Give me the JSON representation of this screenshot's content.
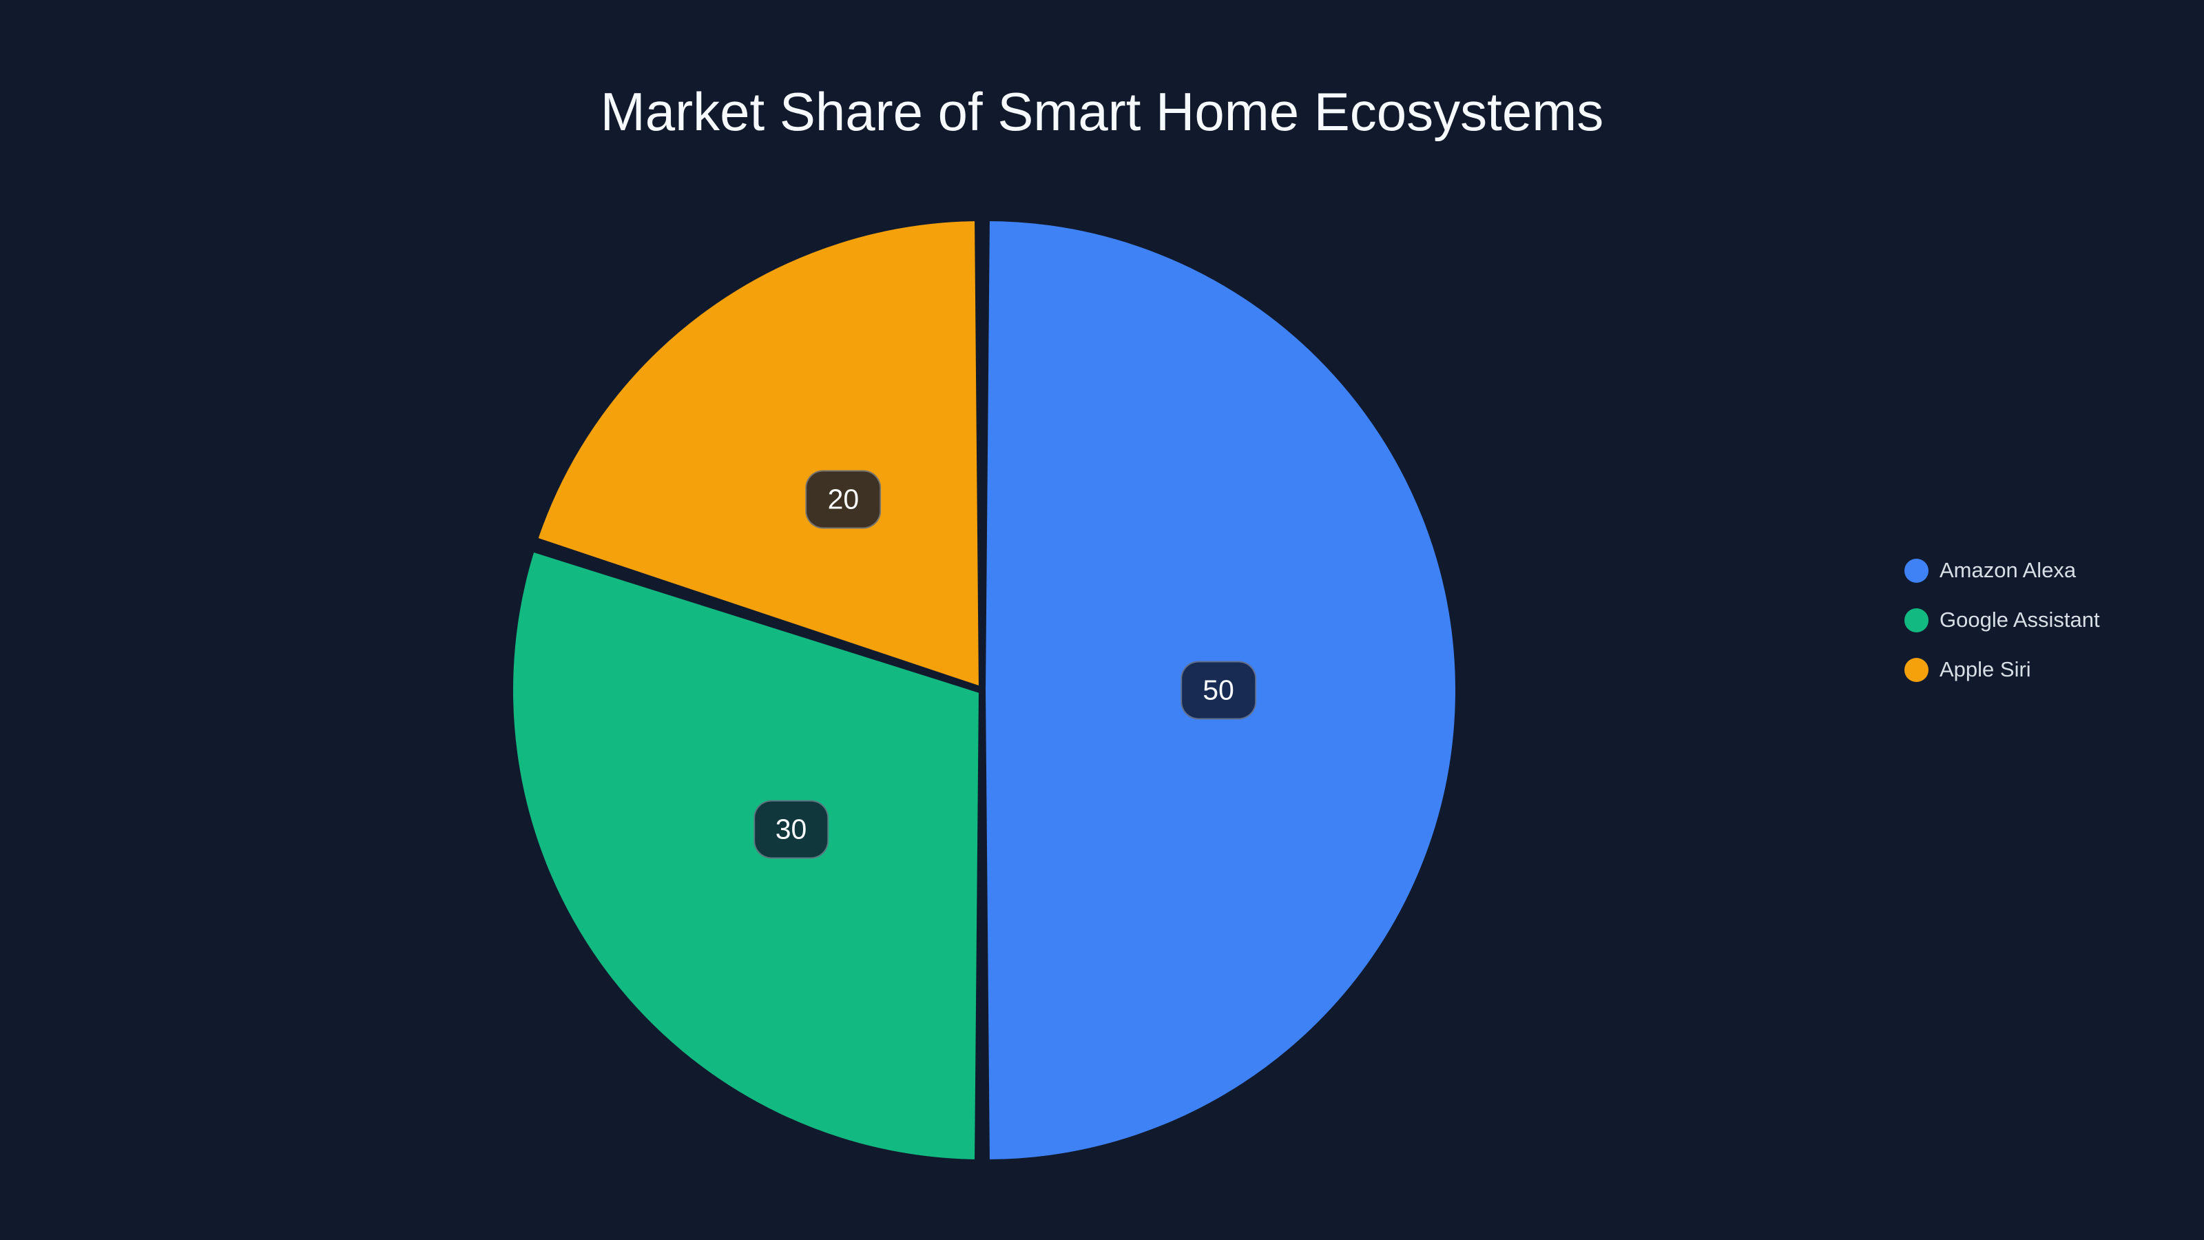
{
  "chart_data": {
    "type": "pie",
    "title": "Market Share of Smart Home Ecosystems",
    "labels": [
      "Amazon Alexa",
      "Google Assistant",
      "Apple Siri"
    ],
    "values": [
      50,
      30,
      20
    ],
    "colors": [
      "#3E82F6",
      "#12B981",
      "#F5A10B"
    ],
    "start_angle_deg": 0,
    "direction": "clockwise",
    "data_labels": [
      "50",
      "30",
      "20"
    ],
    "data_label_radius_fraction": 0.5,
    "legend_position": "right",
    "slice_gap": "background-colored borders between slices"
  },
  "theme": {
    "background": "#111A2C",
    "title_color": "#F7FAFC",
    "legend_text_color": "#D9DFE7",
    "label_box_bg": "rgba(15, 23, 42, 0.8)",
    "label_box_border": "rgba(203, 213, 225, 0.4)",
    "label_text_color": "#F8FAFC"
  }
}
